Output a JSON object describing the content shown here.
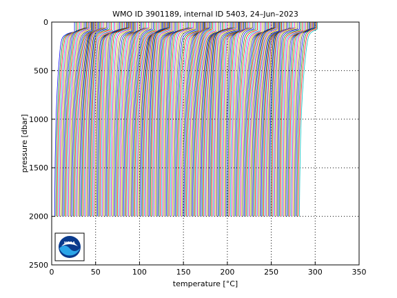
{
  "chart_data": {
    "type": "line",
    "title": "WMO ID 3901189, internal ID 5403, 24–Jun–2023",
    "xlabel": "temperature [°C]",
    "ylabel": "pressure [dbar]",
    "xlim": [
      0,
      350
    ],
    "ylim": [
      2500,
      0
    ],
    "y_reversed": true,
    "grid": true,
    "xticks": [
      "0",
      "50",
      "100",
      "150",
      "200",
      "250",
      "300",
      "350"
    ],
    "yticks": [
      "0",
      "500",
      "1000",
      "1500",
      "2000",
      "2500"
    ],
    "series_note_values": {
      "profile_count": 200,
      "offset_step": 1.4,
      "surface_temperature": 26,
      "mixed_layer_depth": 80,
      "temperature_at_2000dbar": 3,
      "max_pressure": 2000
    },
    "series_colors": [
      "#0000ff",
      "#008000",
      "#ff0000",
      "#00bfbf",
      "#bf00bf",
      "#bfbf00",
      "#404040"
    ],
    "logo": {
      "name": "noaa-logo-icon",
      "text": "NOAA"
    }
  }
}
